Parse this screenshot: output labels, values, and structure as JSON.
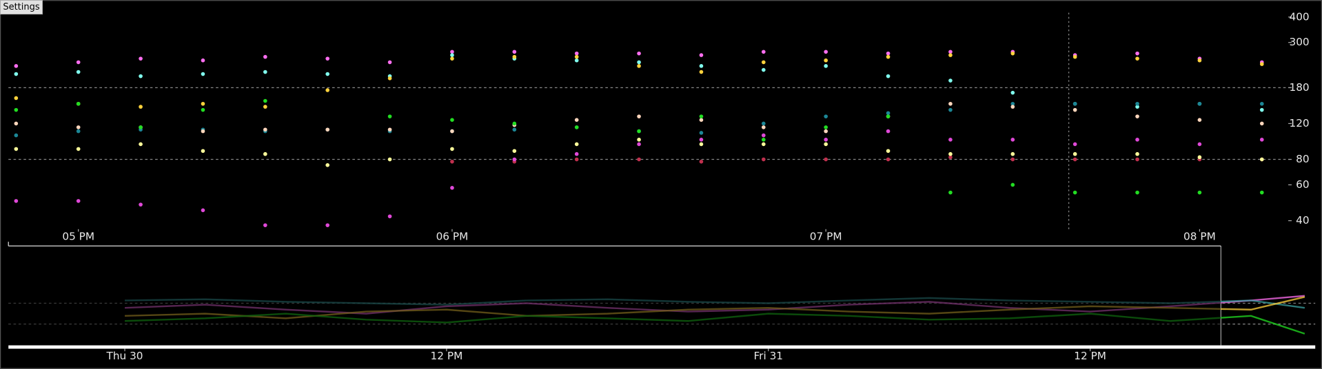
{
  "settings_button": "Settings",
  "chart_data": [
    {
      "type": "scatter",
      "x": [
        "16:50",
        "17:00",
        "17:10",
        "17:20",
        "17:30",
        "17:40",
        "17:50",
        "18:00",
        "18:10",
        "18:20",
        "18:30",
        "18:40",
        "18:50",
        "19:00",
        "19:10",
        "19:20",
        "19:30",
        "19:40",
        "19:50",
        "20:00",
        "20:10"
      ],
      "xlim": [
        "16:48",
        "20:18"
      ],
      "xticks": [
        {
          "value": "17:00",
          "label": "05 PM"
        },
        {
          "value": "18:00",
          "label": "06 PM"
        },
        {
          "value": "19:00",
          "label": "07 PM"
        },
        {
          "value": "20:00",
          "label": "08 PM"
        }
      ],
      "ylim": [
        35,
        480
      ],
      "yticks": [
        40,
        60,
        80,
        120,
        180,
        300,
        400
      ],
      "log_y": true,
      "ygrid": [
        80,
        180
      ],
      "cursor_x": "19:39",
      "series": [
        {
          "color": "#ff6ef0",
          "values": [
            230,
            240,
            250,
            245,
            255,
            250,
            240,
            270,
            270,
            265,
            265,
            260,
            270,
            270,
            265,
            270,
            270,
            260,
            265,
            250,
            240
          ]
        },
        {
          "color": "#80ffee",
          "values": [
            210,
            215,
            205,
            210,
            215,
            210,
            205,
            260,
            250,
            245,
            240,
            230,
            220,
            230,
            205,
            195,
            170,
            150,
            145,
            150,
            140
          ]
        },
        {
          "color": "#ffd23c",
          "values": [
            160,
            150,
            145,
            150,
            145,
            175,
            200,
            250,
            255,
            255,
            230,
            215,
            240,
            245,
            255,
            260,
            265,
            255,
            250,
            245,
            235
          ]
        },
        {
          "color": "#1c8796",
          "values": [
            105,
            110,
            112,
            112,
            110,
            112,
            110,
            110,
            112,
            115,
            110,
            108,
            120,
            130,
            135,
            140,
            150,
            150,
            150,
            150,
            150
          ]
        },
        {
          "color": "#ffd6bc",
          "values": [
            120,
            115,
            115,
            110,
            112,
            112,
            112,
            110,
            118,
            125,
            130,
            125,
            115,
            110,
            130,
            150,
            145,
            140,
            130,
            125,
            120
          ]
        },
        {
          "color": "#c0304e",
          "values": [
            null,
            null,
            null,
            null,
            null,
            null,
            null,
            78,
            78,
            80,
            80,
            78,
            80,
            80,
            80,
            82,
            80,
            80,
            80,
            80,
            80
          ]
        },
        {
          "color": "#e048d8",
          "values": [
            50,
            50,
            48,
            45,
            38,
            38,
            42,
            58,
            80,
            85,
            95,
            100,
            105,
            100,
            110,
            100,
            100,
            95,
            100,
            95,
            100
          ]
        },
        {
          "color": "#22dd22",
          "values": [
            140,
            150,
            115,
            140,
            155,
            null,
            130,
            125,
            120,
            115,
            110,
            130,
            100,
            115,
            130,
            55,
            60,
            55,
            55,
            55,
            55
          ]
        },
        {
          "color": "#ffff9a",
          "values": [
            90,
            90,
            95,
            88,
            85,
            75,
            80,
            90,
            88,
            95,
            100,
            95,
            95,
            95,
            88,
            85,
            85,
            85,
            85,
            82,
            80
          ]
        }
      ]
    },
    {
      "type": "line",
      "x": [
        "Thu 30 00:00",
        "Thu 30 03:00",
        "Thu 30 06:00",
        "Thu 30 09:00",
        "Thu 30 12:00",
        "Thu 30 15:00",
        "Thu 30 18:00",
        "Thu 30 21:00",
        "Fri 31 00:00",
        "Fri 31 03:00",
        "Fri 31 06:00",
        "Fri 31 09:00",
        "Fri 31 12:00",
        "Fri 31 15:00",
        "Fri 31 18:00",
        "Fri 31 20:00"
      ],
      "xlim": [
        "Thu 30 00:00",
        "Fri 31 20:18"
      ],
      "xticks": [
        {
          "value": "Thu 30 00:00",
          "label": "Thu 30"
        },
        {
          "value": "Thu 30 12:00",
          "label": "12 PM"
        },
        {
          "value": "Fri 31 00:00",
          "label": "Fri 31"
        },
        {
          "value": "Fri 31 12:00",
          "label": "12 PM"
        }
      ],
      "ylim": [
        35,
        480
      ],
      "log_y": true,
      "ygrid": [
        80,
        180
      ],
      "series": [
        {
          "color": "#ff6ef0",
          "values": [
            150,
            170,
            140,
            120,
            160,
            180,
            150,
            130,
            140,
            170,
            190,
            150,
            130,
            160,
            200,
            240
          ]
        },
        {
          "color": "#3aa0a0",
          "values": [
            200,
            210,
            190,
            180,
            170,
            200,
            210,
            190,
            180,
            200,
            220,
            200,
            190,
            180,
            200,
            150
          ]
        },
        {
          "color": "#ffd23c",
          "values": [
            110,
            120,
            100,
            130,
            140,
            110,
            120,
            140,
            150,
            130,
            120,
            140,
            160,
            150,
            140,
            230
          ]
        },
        {
          "color": "#22dd22",
          "values": [
            90,
            100,
            120,
            95,
            85,
            110,
            100,
            90,
            120,
            110,
            95,
            100,
            120,
            90,
            110,
            55
          ]
        }
      ]
    }
  ]
}
